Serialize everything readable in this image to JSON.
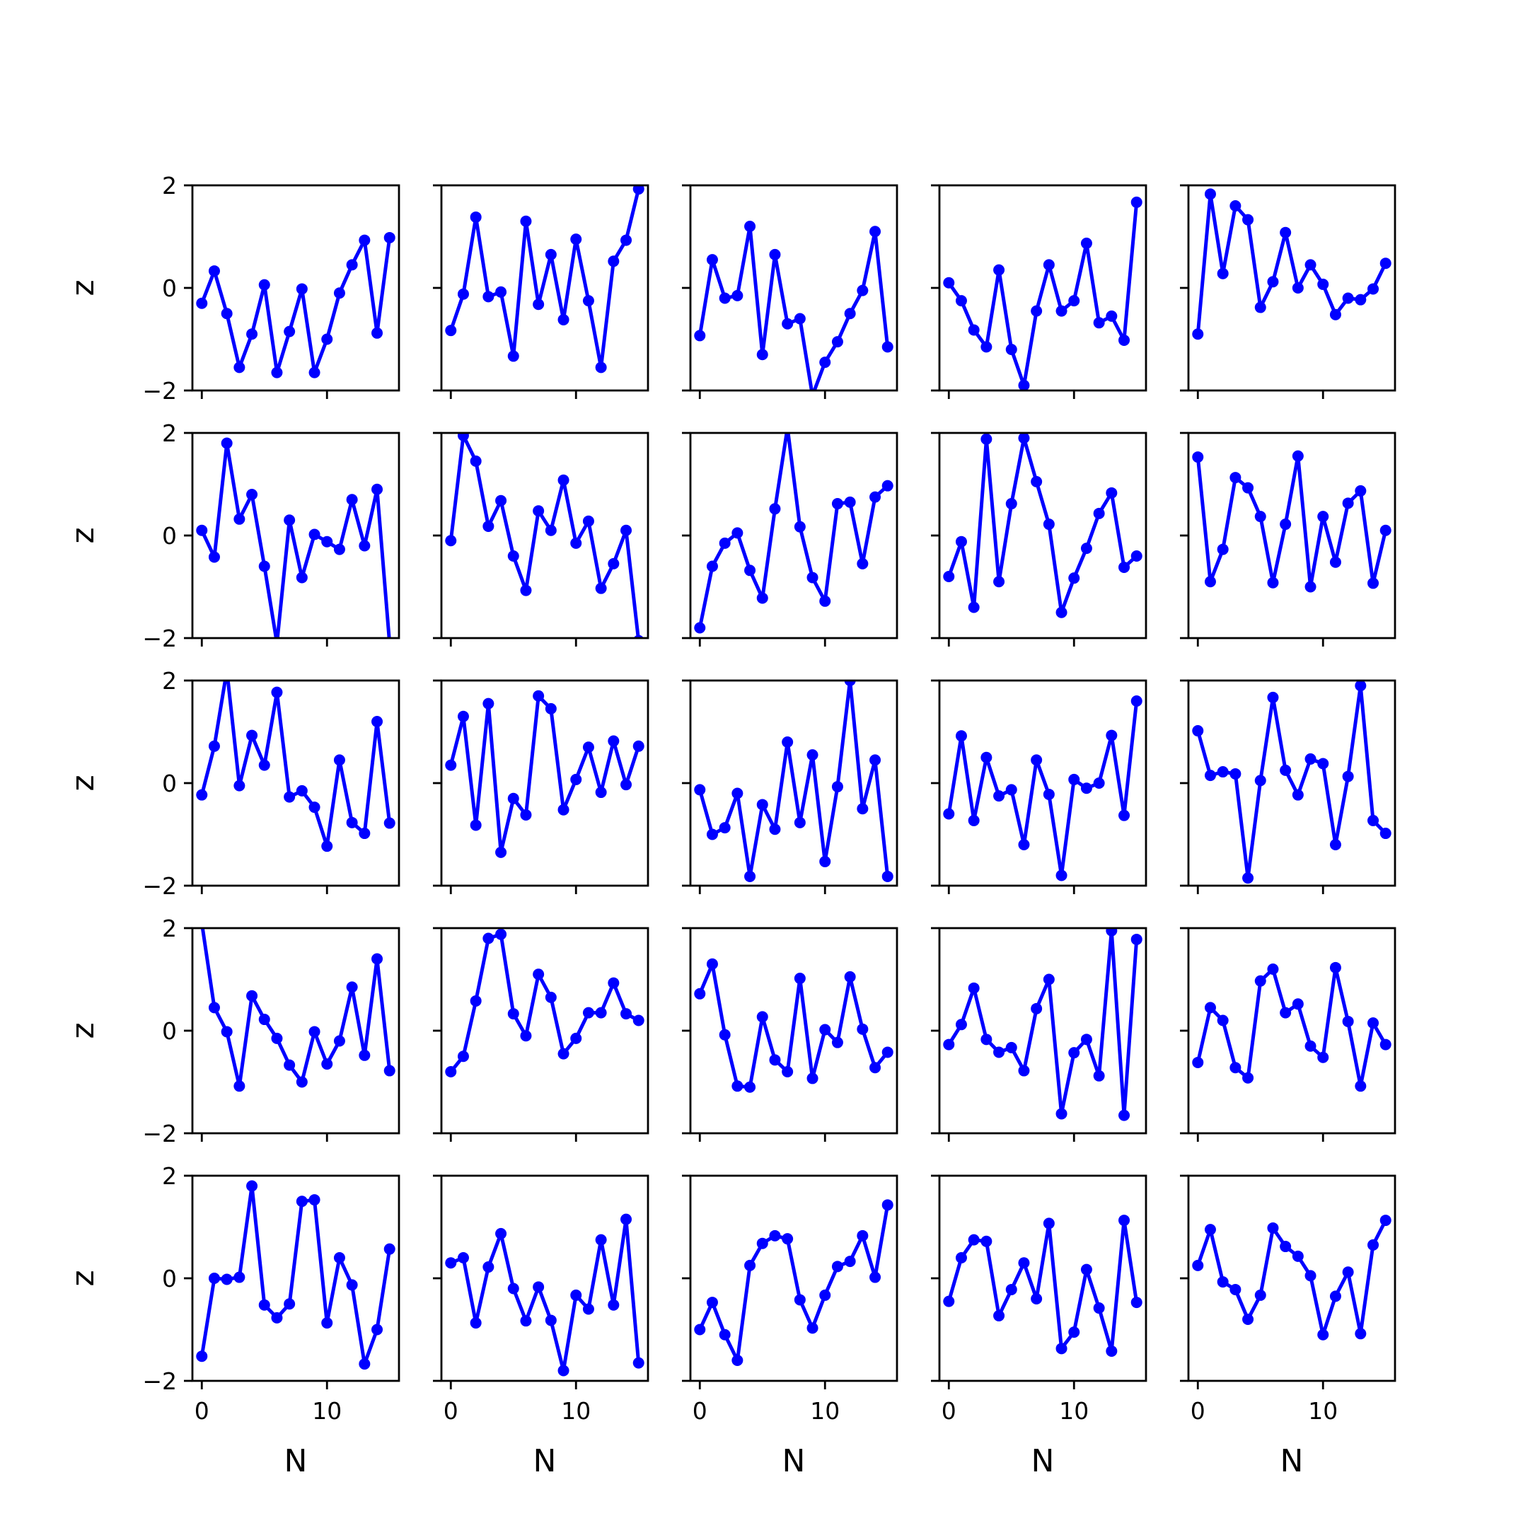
{
  "chart_data": {
    "type": "line",
    "layout": "5x5 grid of small multiples, shared x and y axes",
    "xlabel": "N",
    "ylabel": "z",
    "xlim": [
      -0.75,
      15.75
    ],
    "ylim": [
      -2,
      2
    ],
    "xticks": [
      0,
      10
    ],
    "yticks": [
      -2,
      0,
      2
    ],
    "tick_labels": {
      "x": [
        "0",
        "10"
      ],
      "y": [
        "−2",
        "0",
        "2"
      ]
    },
    "x": [
      0,
      1,
      2,
      3,
      4,
      5,
      6,
      7,
      8,
      9,
      10,
      11,
      12,
      13,
      14,
      15
    ],
    "color": "#0000ff",
    "marker": "circle",
    "grid": false,
    "panels": [
      [
        -0.3,
        0.33,
        -0.5,
        -1.55,
        -0.9,
        0.06,
        -1.65,
        -0.85,
        -0.02,
        -1.65,
        -1.0,
        -0.1,
        0.45,
        0.93,
        -0.88,
        0.98
      ],
      [
        -0.83,
        -0.12,
        1.38,
        -0.17,
        -0.08,
        -1.33,
        1.3,
        -0.32,
        0.65,
        -0.62,
        0.95,
        -0.25,
        -1.55,
        0.52,
        0.93,
        1.93
      ],
      [
        -0.93,
        0.55,
        -0.2,
        -0.15,
        1.2,
        -1.3,
        0.65,
        -0.7,
        -0.6,
        -2.1,
        -1.45,
        -1.05,
        -0.5,
        -0.05,
        1.1,
        -1.15
      ],
      [
        0.1,
        -0.25,
        -0.82,
        -1.15,
        0.35,
        -1.2,
        -1.9,
        -0.45,
        0.45,
        -0.45,
        -0.25,
        0.87,
        -0.68,
        -0.55,
        -1.02,
        1.67
      ],
      [
        -0.9,
        1.83,
        0.28,
        1.6,
        1.33,
        -0.38,
        0.12,
        1.08,
        0.0,
        0.45,
        0.07,
        -0.52,
        -0.2,
        -0.23,
        -0.02,
        0.48
      ],
      [
        0.1,
        -0.42,
        1.8,
        0.32,
        0.8,
        -0.6,
        -2.1,
        0.3,
        -0.82,
        0.02,
        -0.12,
        -0.27,
        0.7,
        -0.2,
        0.9,
        -2.1
      ],
      [
        -0.1,
        1.95,
        1.45,
        0.18,
        0.68,
        -0.4,
        -1.07,
        0.48,
        0.1,
        1.08,
        -0.15,
        0.28,
        -1.03,
        -0.55,
        0.1,
        -2.05
      ],
      [
        -1.8,
        -0.6,
        -0.15,
        0.05,
        -0.68,
        -1.22,
        0.52,
        2.1,
        0.17,
        -0.82,
        -1.28,
        0.62,
        0.65,
        -0.55,
        0.75,
        0.97
      ],
      [
        -0.8,
        -0.12,
        -1.4,
        1.88,
        -0.9,
        0.62,
        1.9,
        1.05,
        0.22,
        -1.5,
        -0.83,
        -0.25,
        0.43,
        0.83,
        -0.62,
        -0.4
      ],
      [
        1.53,
        -0.9,
        -0.27,
        1.13,
        0.93,
        0.37,
        -0.92,
        0.22,
        1.55,
        -1.0,
        0.37,
        -0.52,
        0.63,
        0.87,
        -0.93,
        0.1
      ],
      [
        -0.23,
        0.72,
        2.2,
        -0.05,
        0.93,
        0.35,
        1.77,
        -0.27,
        -0.15,
        -0.47,
        -1.23,
        0.45,
        -0.77,
        -0.98,
        1.2,
        -0.78
      ],
      [
        0.35,
        1.3,
        -0.82,
        1.55,
        -1.35,
        -0.3,
        -0.62,
        1.7,
        1.45,
        -0.52,
        0.07,
        0.7,
        -0.18,
        0.82,
        -0.03,
        0.72
      ],
      [
        -0.13,
        -1.0,
        -0.87,
        -0.2,
        -1.82,
        -0.42,
        -0.9,
        0.8,
        -0.77,
        0.55,
        -1.53,
        -0.07,
        2.0,
        -0.5,
        0.45,
        -1.82
      ],
      [
        -0.6,
        0.92,
        -0.73,
        0.5,
        -0.25,
        -0.13,
        -1.2,
        0.45,
        -0.22,
        -1.8,
        0.07,
        -0.1,
        0.0,
        0.93,
        -0.63,
        1.6
      ],
      [
        1.02,
        0.15,
        0.22,
        0.18,
        -1.85,
        0.05,
        1.67,
        0.25,
        -0.23,
        0.47,
        0.38,
        -1.2,
        0.13,
        1.9,
        -0.73,
        -0.98
      ],
      [
        2.1,
        0.45,
        -0.02,
        -1.08,
        0.68,
        0.22,
        -0.15,
        -0.67,
        -1.0,
        -0.02,
        -0.65,
        -0.2,
        0.85,
        -0.48,
        1.4,
        -0.78
      ],
      [
        -0.8,
        -0.5,
        0.58,
        1.8,
        1.88,
        0.33,
        -0.1,
        1.1,
        0.65,
        -0.45,
        -0.15,
        0.35,
        0.35,
        0.93,
        0.33,
        0.2
      ],
      [
        0.72,
        1.3,
        -0.08,
        -1.08,
        -1.1,
        0.27,
        -0.57,
        -0.8,
        1.02,
        -0.93,
        0.02,
        -0.23,
        1.05,
        0.03,
        -0.72,
        -0.42
      ],
      [
        -0.27,
        0.12,
        0.83,
        -0.17,
        -0.42,
        -0.33,
        -0.78,
        0.43,
        1.0,
        -1.62,
        -0.43,
        -0.17,
        -0.88,
        1.95,
        -1.65,
        1.78
      ],
      [
        -0.62,
        0.45,
        0.2,
        -0.72,
        -0.92,
        0.97,
        1.2,
        0.35,
        0.52,
        -0.3,
        -0.52,
        1.23,
        0.18,
        -1.08,
        0.15,
        -0.27
      ],
      [
        -1.52,
        0.0,
        -0.02,
        0.02,
        1.8,
        -0.52,
        -0.77,
        -0.5,
        1.5,
        1.53,
        -0.87,
        0.4,
        -0.13,
        -1.67,
        -1.0,
        0.57
      ],
      [
        0.3,
        0.4,
        -0.87,
        0.22,
        0.87,
        -0.2,
        -0.83,
        -0.17,
        -0.82,
        -1.8,
        -0.33,
        -0.6,
        0.75,
        -0.52,
        1.15,
        -1.65
      ],
      [
        -1.0,
        -0.47,
        -1.1,
        -1.6,
        0.25,
        0.68,
        0.83,
        0.77,
        -0.42,
        -0.97,
        -0.33,
        0.23,
        0.33,
        0.83,
        0.02,
        1.43
      ],
      [
        -0.45,
        0.4,
        0.75,
        0.72,
        -0.73,
        -0.22,
        0.3,
        -0.4,
        1.07,
        -1.37,
        -1.05,
        0.17,
        -0.58,
        -1.42,
        1.13,
        -0.47
      ],
      [
        0.25,
        0.95,
        -0.07,
        -0.22,
        -0.8,
        -0.33,
        0.98,
        0.62,
        0.43,
        0.05,
        -1.1,
        -0.35,
        0.12,
        -1.08,
        0.65,
        1.13
      ]
    ]
  }
}
